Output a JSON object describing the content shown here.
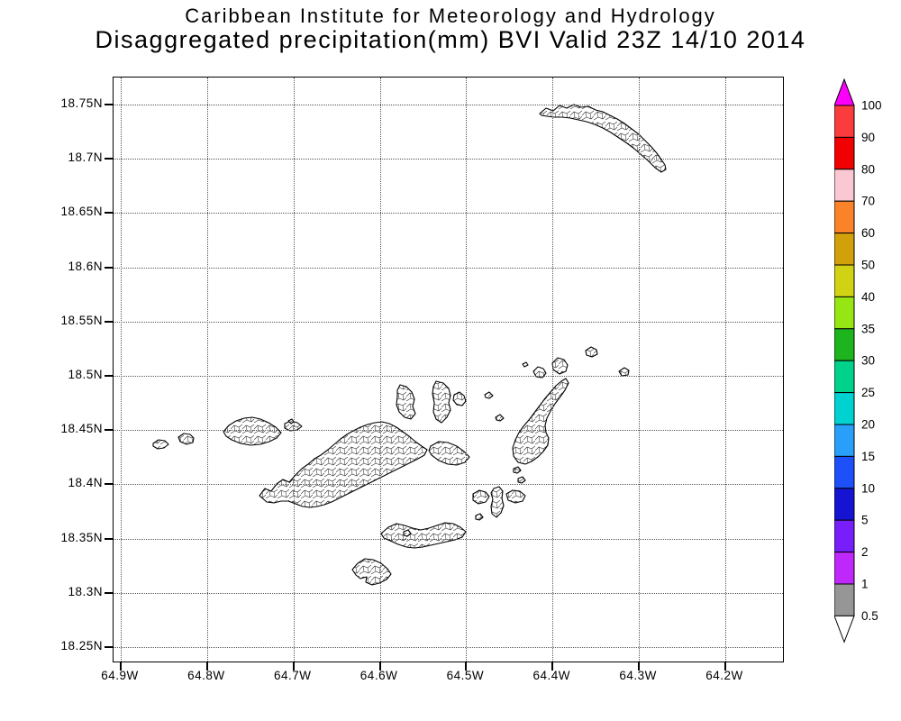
{
  "header": {
    "line1": "Caribbean Institute for Meteorology and Hydrology",
    "line2": "Disaggregated precipitation(mm) BVI Valid 23Z 14/10 2014"
  },
  "axes": {
    "lat_ticks": [
      "18.75N",
      "18.7N",
      "18.65N",
      "18.6N",
      "18.55N",
      "18.5N",
      "18.45N",
      "18.4N",
      "18.35N",
      "18.3N",
      "18.25N"
    ],
    "lon_ticks": [
      "64.9W",
      "64.8W",
      "64.7W",
      "64.6W",
      "64.5W",
      "64.4W",
      "64.3W",
      "64.2W"
    ]
  },
  "colorbar": {
    "labels": [
      "100",
      "90",
      "80",
      "70",
      "60",
      "50",
      "40",
      "35",
      "30",
      "25",
      "20",
      "15",
      "10",
      "5",
      "2",
      "1",
      "0.5"
    ],
    "segment_colors": [
      "#fa3c3c",
      "#f00000",
      "#fac8d2",
      "#fa8228",
      "#d2a00a",
      "#d2d214",
      "#96e614",
      "#1eb41e",
      "#00d28c",
      "#00d2d2",
      "#28a0fa",
      "#1e50fa",
      "#1414d2",
      "#781efa",
      "#be28fa",
      "#969696"
    ],
    "arrow_top_color": "#fa00fa",
    "arrow_bottom_color": "#ffffff"
  },
  "map_units": "mm"
}
